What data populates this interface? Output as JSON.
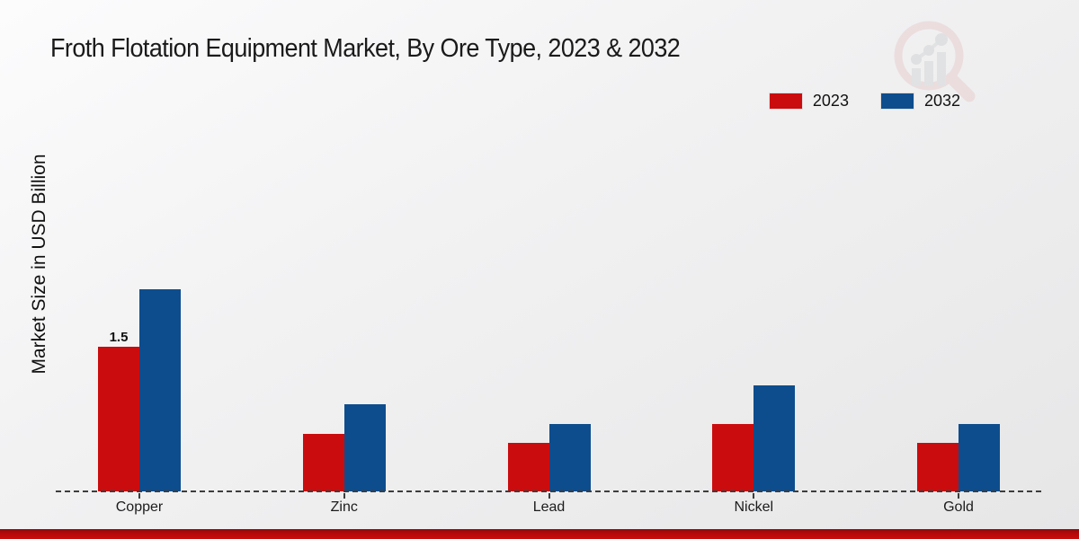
{
  "header": {
    "title": "Froth Flotation Equipment Market, By Ore Type, 2023 & 2032"
  },
  "legend": {
    "items": [
      {
        "label": "2023",
        "color": "#cb0c0e"
      },
      {
        "label": "2032",
        "color": "#0d4d8d"
      }
    ]
  },
  "watermark_icon": "magnifier-bar-chart-logo",
  "colors": {
    "series_2023": "#cb0c0e",
    "series_2032": "#0d4d8d",
    "bottom_accent": "#c90c0c",
    "axis_line": "#3d3d3d"
  },
  "chart_data": {
    "type": "bar",
    "title": "Froth Flotation Equipment Market, By Ore Type, 2023 & 2032",
    "xlabel": "",
    "ylabel": "Market Size in USD Billion",
    "categories": [
      "Copper",
      "Zinc",
      "Lead",
      "Nickel",
      "Gold"
    ],
    "series": [
      {
        "name": "2023",
        "color": "#cb0c0e",
        "values": [
          1.5,
          0.6,
          0.5,
          0.7,
          0.5
        ]
      },
      {
        "name": "2032",
        "color": "#0d4d8d",
        "values": [
          2.1,
          0.9,
          0.7,
          1.1,
          0.7
        ]
      }
    ],
    "data_labels": [
      {
        "series": "2023",
        "category": "Copper",
        "text": "1.5"
      }
    ],
    "ylim": [
      0,
      2.2
    ],
    "grid": false,
    "y_ticks_visible": false,
    "legend_position": "top-right",
    "x_axis_line_style": "dashed"
  }
}
